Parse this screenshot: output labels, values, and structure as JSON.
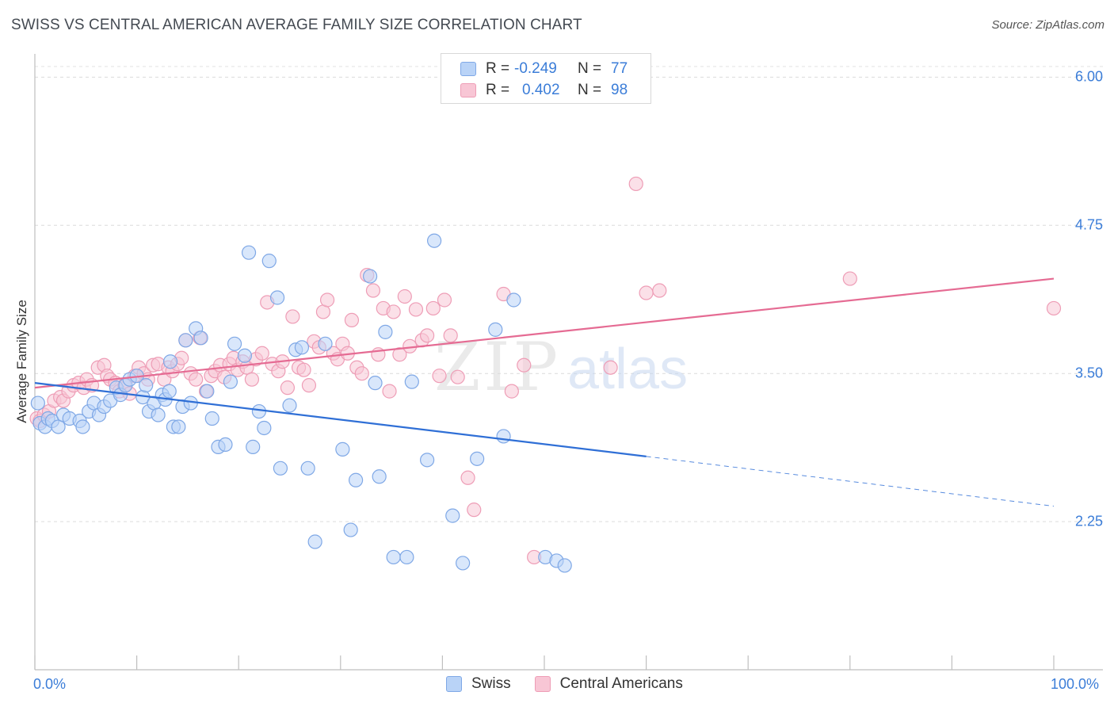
{
  "title": "SWISS VS CENTRAL AMERICAN AVERAGE FAMILY SIZE CORRELATION CHART",
  "source": "Source: ZipAtlas.com",
  "watermark": {
    "zip": "ZIP",
    "atlas": "atlas"
  },
  "legend": {
    "r_label": "R =",
    "n_label": "N =",
    "swiss": {
      "r": "-0.249",
      "n": "77"
    },
    "central": {
      "r": "0.402",
      "n": "98"
    }
  },
  "colors": {
    "swiss_fill": "#b9d3f7",
    "swiss_stroke": "#7fa8e6",
    "swiss_line": "#2f6fd6",
    "central_fill": "#f8c6d5",
    "central_stroke": "#ee9db6",
    "central_line": "#e56b93",
    "tick_text": "#3b7dd8"
  },
  "chart_data": {
    "type": "scatter",
    "title": "SWISS VS CENTRAL AMERICAN AVERAGE FAMILY SIZE CORRELATION CHART",
    "xlabel": "",
    "ylabel": "Average Family Size",
    "xlim": [
      0,
      100
    ],
    "ylim": [
      1.0,
      6.25
    ],
    "x_tick_labels": [
      "0.0%",
      "100.0%"
    ],
    "y_ticks": [
      2.25,
      3.5,
      4.75,
      6.0
    ],
    "y_tick_labels": [
      "2.25",
      "3.50",
      "4.75",
      "6.00"
    ],
    "grid": true,
    "legend_position": "top-center",
    "series": [
      {
        "name": "Swiss",
        "trend": {
          "x": [
            0,
            60
          ],
          "y": [
            3.42,
            2.8
          ]
        },
        "trend_extension": {
          "x": [
            60,
            100
          ],
          "y": [
            2.8,
            2.38
          ]
        },
        "points": [
          [
            0.3,
            3.25
          ],
          [
            0.5,
            3.08
          ],
          [
            1,
            3.05
          ],
          [
            1.3,
            3.12
          ],
          [
            1.7,
            3.1
          ],
          [
            2.3,
            3.05
          ],
          [
            2.8,
            3.15
          ],
          [
            3.4,
            3.12
          ],
          [
            4.4,
            3.1
          ],
          [
            4.7,
            3.05
          ],
          [
            5.3,
            3.18
          ],
          [
            5.8,
            3.25
          ],
          [
            6.3,
            3.15
          ],
          [
            6.8,
            3.22
          ],
          [
            7.4,
            3.27
          ],
          [
            8,
            3.38
          ],
          [
            8.4,
            3.32
          ],
          [
            8.9,
            3.4
          ],
          [
            9.3,
            3.45
          ],
          [
            10,
            3.48
          ],
          [
            10.6,
            3.3
          ],
          [
            10.9,
            3.4
          ],
          [
            11.2,
            3.18
          ],
          [
            11.7,
            3.25
          ],
          [
            12.1,
            3.15
          ],
          [
            12.5,
            3.32
          ],
          [
            12.8,
            3.28
          ],
          [
            13.2,
            3.35
          ],
          [
            13.3,
            3.6
          ],
          [
            13.6,
            3.05
          ],
          [
            14.1,
            3.05
          ],
          [
            14.5,
            3.22
          ],
          [
            14.8,
            3.78
          ],
          [
            15.3,
            3.25
          ],
          [
            15.8,
            3.88
          ],
          [
            16.3,
            3.8
          ],
          [
            16.9,
            3.35
          ],
          [
            17.4,
            3.12
          ],
          [
            18,
            2.88
          ],
          [
            18.7,
            2.9
          ],
          [
            19.2,
            3.43
          ],
          [
            19.6,
            3.75
          ],
          [
            20.6,
            3.65
          ],
          [
            21,
            4.52
          ],
          [
            21.4,
            2.88
          ],
          [
            22,
            3.18
          ],
          [
            22.5,
            3.04
          ],
          [
            23,
            4.45
          ],
          [
            23.8,
            4.14
          ],
          [
            24.1,
            2.7
          ],
          [
            25,
            3.23
          ],
          [
            25.6,
            3.7
          ],
          [
            26.2,
            3.72
          ],
          [
            26.8,
            2.7
          ],
          [
            27.5,
            2.08
          ],
          [
            28.5,
            3.75
          ],
          [
            30.2,
            2.86
          ],
          [
            31,
            2.18
          ],
          [
            31.5,
            2.6
          ],
          [
            32.9,
            4.32
          ],
          [
            33.4,
            3.42
          ],
          [
            33.8,
            2.63
          ],
          [
            34.4,
            3.85
          ],
          [
            35.2,
            1.95
          ],
          [
            36.5,
            1.95
          ],
          [
            37,
            3.43
          ],
          [
            38.5,
            2.77
          ],
          [
            39.2,
            4.62
          ],
          [
            41,
            2.3
          ],
          [
            42,
            1.9
          ],
          [
            43.4,
            2.78
          ],
          [
            45.2,
            3.87
          ],
          [
            46,
            2.97
          ],
          [
            47,
            4.12
          ],
          [
            50.1,
            1.95
          ],
          [
            51.2,
            1.92
          ],
          [
            52,
            1.88
          ]
        ]
      },
      {
        "name": "Central Americans",
        "trend": {
          "x": [
            0,
            100
          ],
          "y": [
            3.38,
            4.3
          ]
        },
        "points": [
          [
            0.2,
            3.12
          ],
          [
            0.5,
            3.1
          ],
          [
            0.9,
            3.15
          ],
          [
            1.4,
            3.18
          ],
          [
            1.9,
            3.27
          ],
          [
            2.5,
            3.3
          ],
          [
            2.8,
            3.27
          ],
          [
            3.3,
            3.35
          ],
          [
            3.8,
            3.4
          ],
          [
            4.3,
            3.42
          ],
          [
            4.8,
            3.38
          ],
          [
            5.1,
            3.45
          ],
          [
            5.6,
            3.4
          ],
          [
            6.2,
            3.55
          ],
          [
            6.8,
            3.57
          ],
          [
            7.1,
            3.48
          ],
          [
            7.4,
            3.45
          ],
          [
            7.9,
            3.42
          ],
          [
            8.3,
            3.35
          ],
          [
            8.8,
            3.4
          ],
          [
            9.3,
            3.33
          ],
          [
            9.8,
            3.48
          ],
          [
            10.2,
            3.55
          ],
          [
            10.7,
            3.5
          ],
          [
            11.1,
            3.45
          ],
          [
            11.6,
            3.57
          ],
          [
            12.1,
            3.58
          ],
          [
            12.7,
            3.45
          ],
          [
            13.1,
            3.55
          ],
          [
            13.5,
            3.52
          ],
          [
            14,
            3.58
          ],
          [
            14.4,
            3.63
          ],
          [
            14.8,
            3.78
          ],
          [
            15.3,
            3.5
          ],
          [
            15.8,
            3.45
          ],
          [
            16.2,
            3.8
          ],
          [
            16.8,
            3.35
          ],
          [
            17.3,
            3.48
          ],
          [
            17.7,
            3.52
          ],
          [
            18.2,
            3.57
          ],
          [
            18.6,
            3.47
          ],
          [
            19.1,
            3.58
          ],
          [
            19.5,
            3.63
          ],
          [
            19.9,
            3.53
          ],
          [
            20.4,
            3.6
          ],
          [
            20.8,
            3.55
          ],
          [
            21.3,
            3.45
          ],
          [
            21.7,
            3.62
          ],
          [
            22.3,
            3.67
          ],
          [
            22.8,
            4.1
          ],
          [
            23.3,
            3.58
          ],
          [
            23.9,
            3.52
          ],
          [
            24.3,
            3.6
          ],
          [
            24.8,
            3.38
          ],
          [
            25.3,
            3.98
          ],
          [
            25.9,
            3.55
          ],
          [
            26.4,
            3.53
          ],
          [
            26.9,
            3.4
          ],
          [
            27.4,
            3.77
          ],
          [
            27.9,
            3.72
          ],
          [
            28.3,
            4.02
          ],
          [
            28.7,
            4.12
          ],
          [
            29.3,
            3.67
          ],
          [
            29.7,
            3.62
          ],
          [
            30.2,
            3.75
          ],
          [
            30.7,
            3.67
          ],
          [
            31.1,
            3.95
          ],
          [
            31.6,
            3.55
          ],
          [
            32.1,
            3.5
          ],
          [
            32.6,
            4.33
          ],
          [
            33.2,
            4.2
          ],
          [
            33.7,
            3.66
          ],
          [
            34.2,
            4.05
          ],
          [
            34.8,
            3.35
          ],
          [
            35.2,
            4.02
          ],
          [
            35.8,
            3.66
          ],
          [
            36.3,
            4.15
          ],
          [
            36.8,
            3.73
          ],
          [
            37.4,
            4.04
          ],
          [
            38,
            3.78
          ],
          [
            38.5,
            3.82
          ],
          [
            39.1,
            4.05
          ],
          [
            39.7,
            3.48
          ],
          [
            40.2,
            4.12
          ],
          [
            40.8,
            3.82
          ],
          [
            41.5,
            3.47
          ],
          [
            42.5,
            2.62
          ],
          [
            43.1,
            2.35
          ],
          [
            46,
            4.17
          ],
          [
            46.8,
            3.35
          ],
          [
            48,
            3.57
          ],
          [
            49,
            1.95
          ],
          [
            56.5,
            3.55
          ],
          [
            59,
            5.1
          ],
          [
            60,
            4.18
          ],
          [
            61.3,
            4.2
          ],
          [
            80,
            4.3
          ],
          [
            100,
            4.05
          ]
        ]
      }
    ]
  }
}
